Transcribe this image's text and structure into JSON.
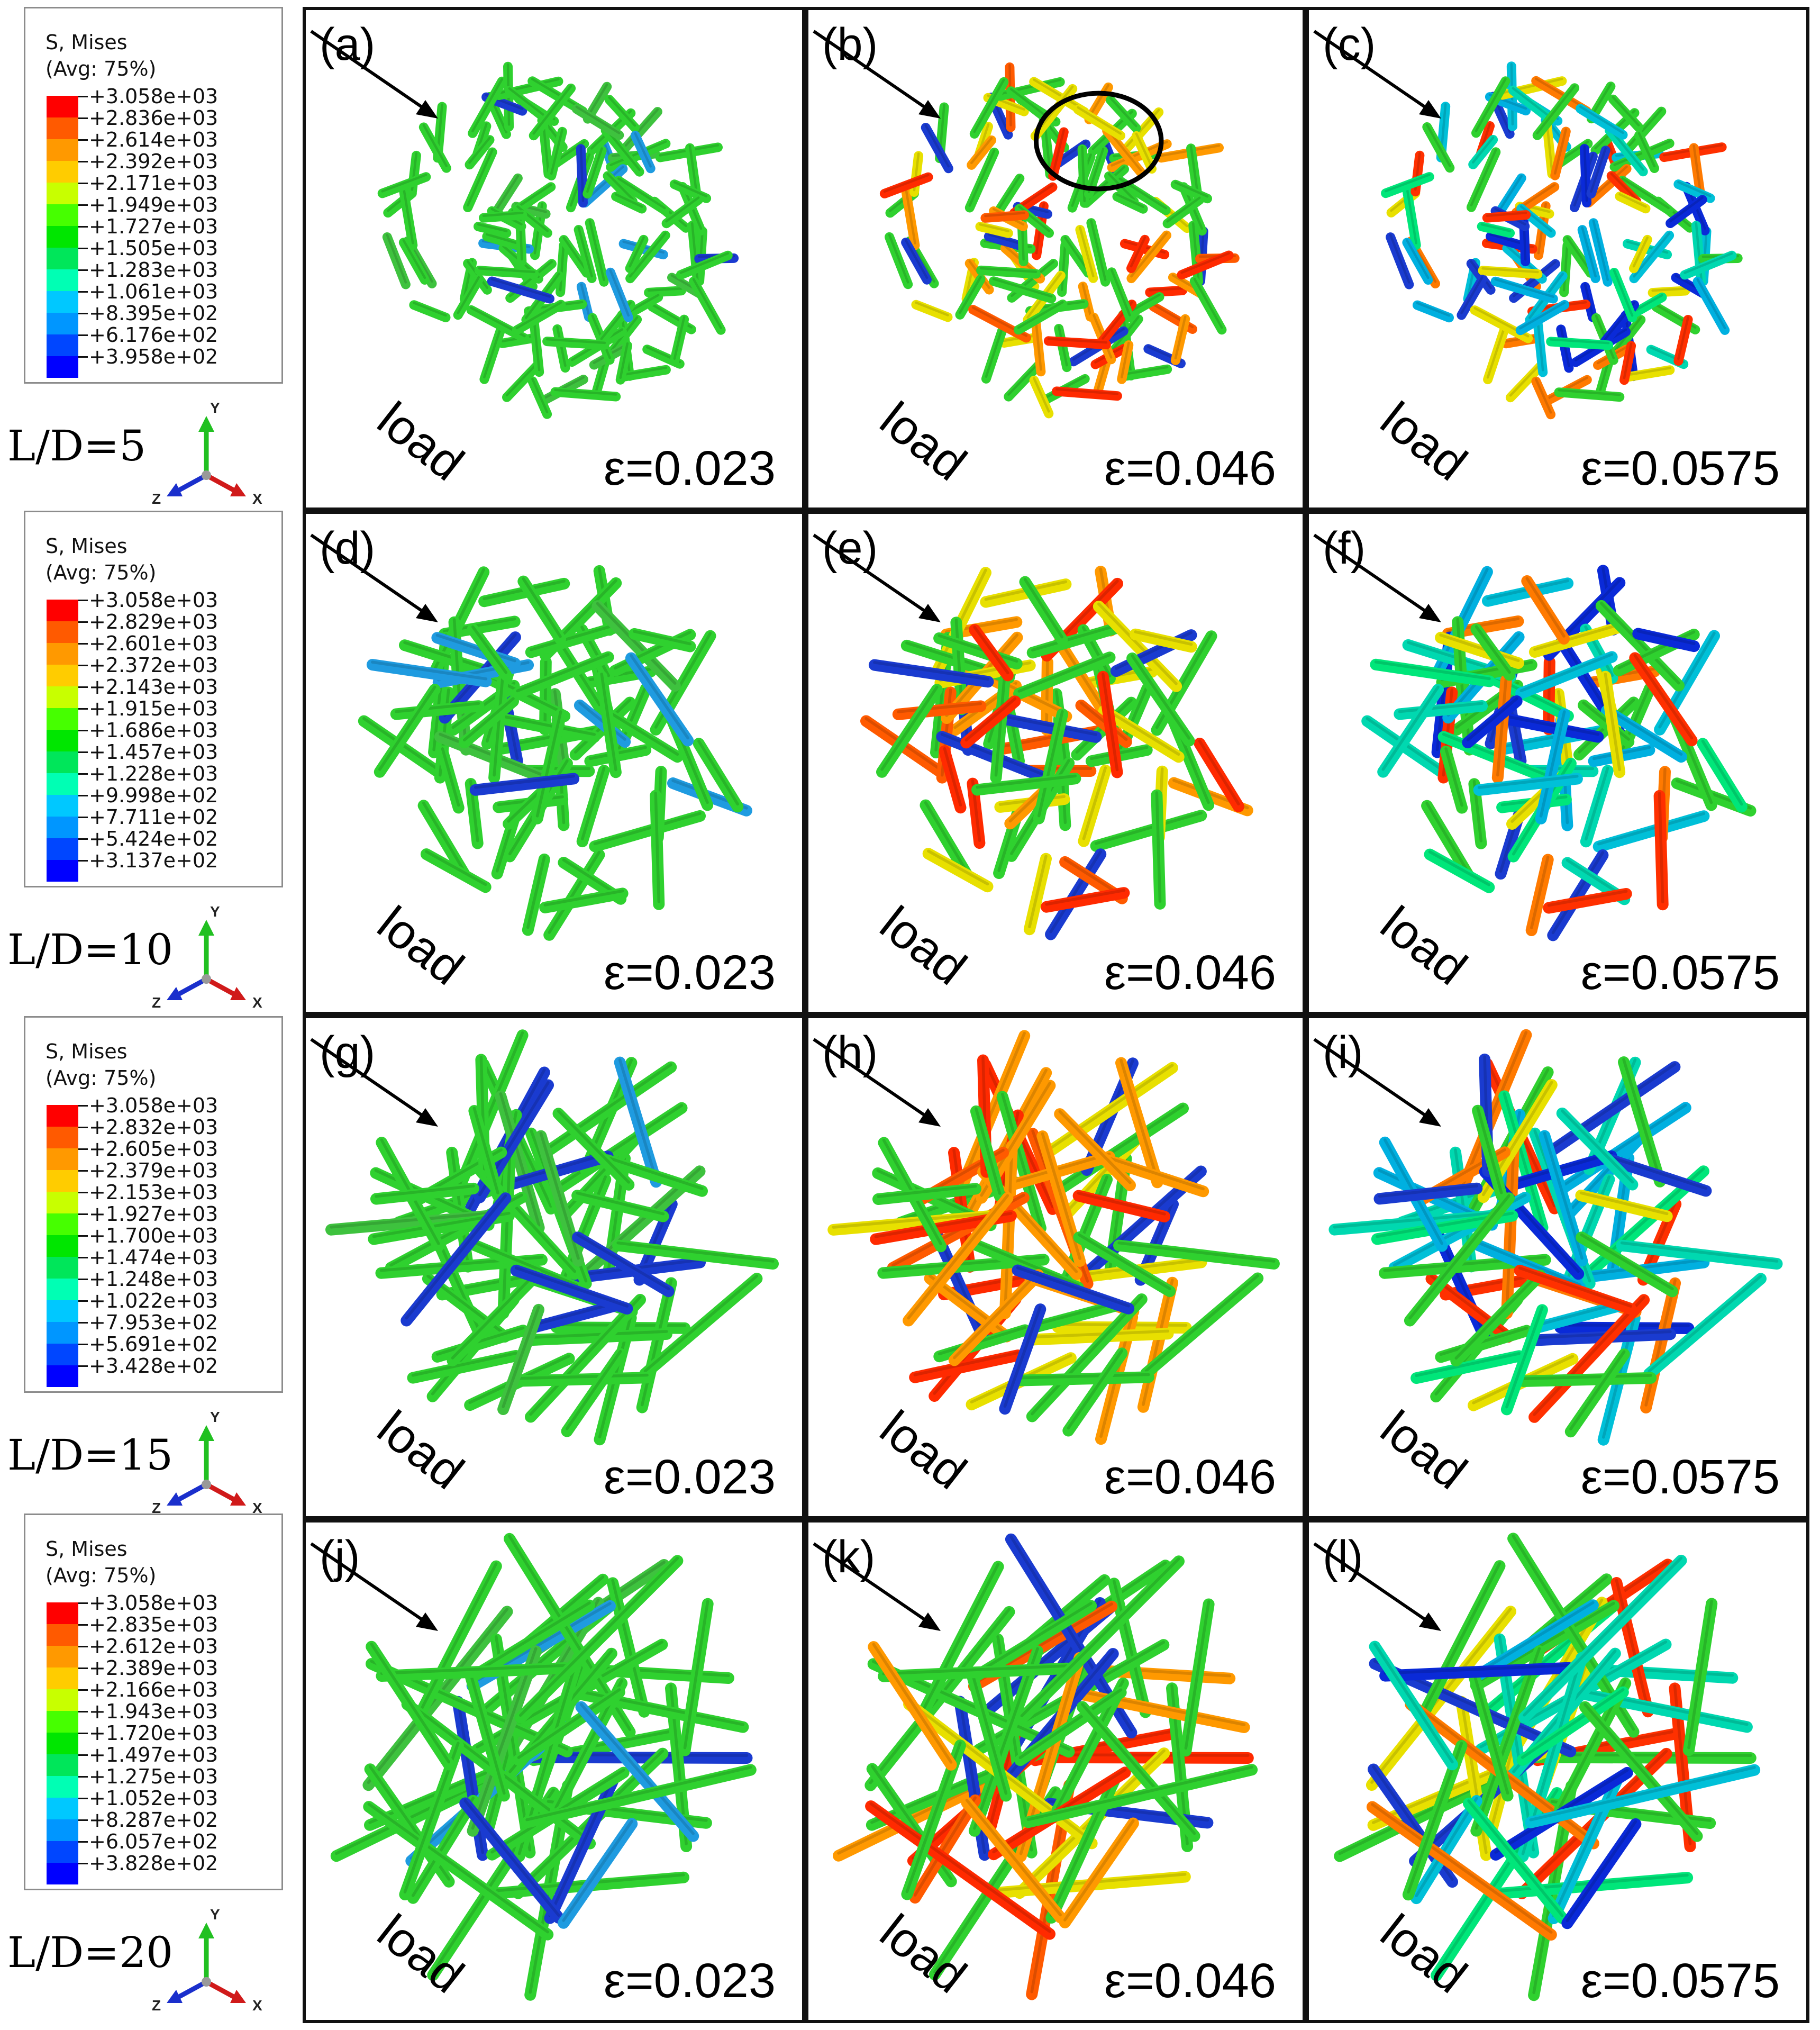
{
  "legend_title": "S, Mises",
  "legend_subtitle": "(Avg: 75%)",
  "legend_colors": [
    "#ff0000",
    "#ff5a00",
    "#ff9900",
    "#ffcc00",
    "#c8ff00",
    "#46ff00",
    "#00e600",
    "#00e65a",
    "#00ffb4",
    "#00c8ff",
    "#0096ff",
    "#0046ff",
    "#0000ff"
  ],
  "rows": [
    {
      "ld_label": "L/D=5",
      "legend_values": [
        "+3.058e+03",
        "+2.836e+03",
        "+2.614e+03",
        "+2.392e+03",
        "+2.171e+03",
        "+1.949e+03",
        "+1.727e+03",
        "+1.505e+03",
        "+1.283e+03",
        "+1.061e+03",
        "+8.395e+02",
        "+6.176e+02",
        "+3.958e+02"
      ]
    },
    {
      "ld_label": "L/D=10",
      "legend_values": [
        "+3.058e+03",
        "+2.829e+03",
        "+2.601e+03",
        "+2.372e+03",
        "+2.143e+03",
        "+1.915e+03",
        "+1.686e+03",
        "+1.457e+03",
        "+1.228e+03",
        "+9.998e+02",
        "+7.711e+02",
        "+5.424e+02",
        "+3.137e+02"
      ]
    },
    {
      "ld_label": "L/D=15",
      "legend_values": [
        "+3.058e+03",
        "+2.832e+03",
        "+2.605e+03",
        "+2.379e+03",
        "+2.153e+03",
        "+1.927e+03",
        "+1.700e+03",
        "+1.474e+03",
        "+1.248e+03",
        "+1.022e+03",
        "+7.953e+02",
        "+5.691e+02",
        "+3.428e+02"
      ]
    },
    {
      "ld_label": "L/D=20",
      "legend_values": [
        "+3.058e+03",
        "+2.835e+03",
        "+2.612e+03",
        "+2.389e+03",
        "+2.166e+03",
        "+1.943e+03",
        "+1.720e+03",
        "+1.497e+03",
        "+1.275e+03",
        "+1.052e+03",
        "+8.287e+02",
        "+6.057e+02",
        "+3.828e+02"
      ]
    }
  ],
  "axis_labels": {
    "y": "Y",
    "z": "Z",
    "x": "X"
  },
  "load_text": "load",
  "panels": [
    {
      "label": "(a)",
      "strain": "ε=0.023",
      "stage": 0
    },
    {
      "label": "(b)",
      "strain": "ε=0.046",
      "stage": 1,
      "highlight_circle": true
    },
    {
      "label": "(c)",
      "strain": "ε=0.0575",
      "stage": 2
    },
    {
      "label": "(d)",
      "strain": "ε=0.023",
      "stage": 0
    },
    {
      "label": "(e)",
      "strain": "ε=0.046",
      "stage": 1
    },
    {
      "label": "(f)",
      "strain": "ε=0.0575",
      "stage": 2
    },
    {
      "label": "(g)",
      "strain": "ε=0.023",
      "stage": 0
    },
    {
      "label": "(h)",
      "strain": "ε=0.046",
      "stage": 1
    },
    {
      "label": "(i)",
      "strain": "ε=0.0575",
      "stage": 2
    },
    {
      "label": "(j)",
      "strain": "ε=0.023",
      "stage": 0
    },
    {
      "label": "(k)",
      "strain": "ε=0.046",
      "stage": 1
    },
    {
      "label": "(l)",
      "strain": "ε=0.0575",
      "stage": 2
    }
  ]
}
